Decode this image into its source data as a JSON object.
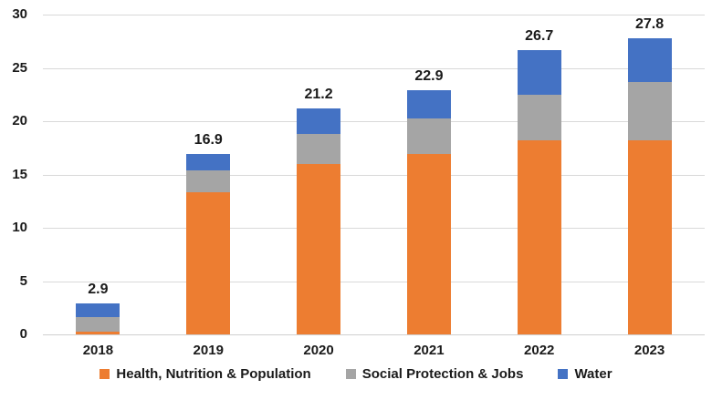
{
  "chart_data": {
    "type": "bar",
    "stacked": true,
    "title": "",
    "xlabel": "",
    "ylabel": "",
    "categories": [
      "2018",
      "2019",
      "2020",
      "2021",
      "2022",
      "2023"
    ],
    "series": [
      {
        "name": "Health, Nutrition & Population",
        "color": "#ED7D31",
        "values": [
          0.3,
          13.3,
          16.0,
          16.9,
          18.2,
          18.2
        ]
      },
      {
        "name": "Social Protection & Jobs",
        "color": "#A5A5A5",
        "values": [
          1.3,
          2.1,
          2.8,
          3.4,
          4.3,
          5.5
        ]
      },
      {
        "name": "Water",
        "color": "#4472C4",
        "values": [
          1.3,
          1.5,
          2.4,
          2.6,
          4.2,
          4.1
        ]
      }
    ],
    "totals": [
      "2.9",
      "16.9",
      "21.2",
      "22.9",
      "26.7",
      "27.8"
    ],
    "ylim": [
      0,
      30
    ],
    "yticks": [
      0,
      5,
      10,
      15,
      20,
      25,
      30
    ],
    "grid": true,
    "legend_position": "bottom"
  },
  "style": {
    "grid_color": "#D9D9D9",
    "axis_line_color": "#D0D0D0",
    "text_color": "#1A1A1A",
    "background": "#FFFFFF"
  }
}
